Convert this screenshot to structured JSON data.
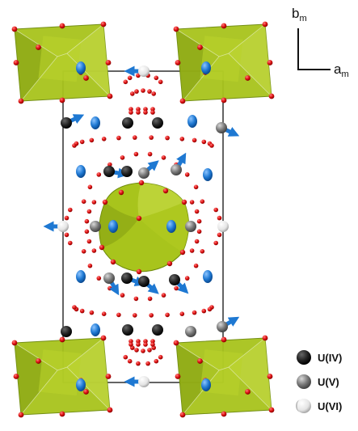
{
  "axes": {
    "vertical": {
      "main": "b",
      "sub": "m"
    },
    "horizontal": {
      "main": "a",
      "sub": "m"
    }
  },
  "legend": [
    {
      "label": "U(IV)",
      "color": "#111111",
      "style": "full"
    },
    {
      "label": "U(V)",
      "color": "#6e6e6e",
      "style": "full"
    },
    {
      "label": "U(VI)",
      "color": "#dcdcdc",
      "style": "crescent"
    }
  ],
  "colors": {
    "polyhedron_fill": "#a8c41c",
    "polyhedron_dark": "#7f9a10",
    "polyhedron_light": "#c9dd49",
    "oxygen": "#e01515",
    "spin_arrow": "#1e78d2",
    "unit_cell": "#222222"
  },
  "icons": [
    "polyhedron-icon",
    "oxygen-atom-icon",
    "uranium-atom-icon",
    "spin-arrow-icon"
  ]
}
